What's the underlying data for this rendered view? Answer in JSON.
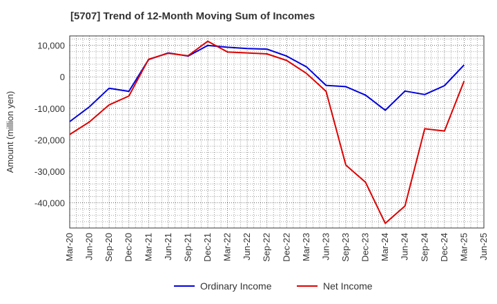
{
  "chart_data": {
    "type": "line",
    "title": "[5707]  Trend of 12-Month Moving Sum of Incomes",
    "ylabel": "Amount (million yen)",
    "xlabel": "",
    "ylim": [
      -48000,
      13000
    ],
    "yticks": [
      10000,
      0,
      -10000,
      -20000,
      -30000,
      -40000
    ],
    "ytick_labels": [
      "10,000",
      "0",
      "-10,000",
      "-20,000",
      "-30,000",
      "-40,000"
    ],
    "categories": [
      "Mar-20",
      "Jun-20",
      "Sep-20",
      "Dec-20",
      "Mar-21",
      "Jun-21",
      "Sep-21",
      "Dec-21",
      "Mar-22",
      "Jun-22",
      "Sep-22",
      "Dec-22",
      "Mar-23",
      "Jun-23",
      "Sep-23",
      "Dec-23",
      "Mar-24",
      "Jun-24",
      "Sep-24",
      "Dec-24",
      "Mar-25",
      "Jun-25"
    ],
    "grid": true,
    "legend_position": "bottom",
    "series": [
      {
        "name": "Ordinary Income",
        "color": "#0000dd",
        "values": [
          -14200,
          -9500,
          -3600,
          -4600,
          5500,
          7600,
          6600,
          10000,
          9400,
          9000,
          8800,
          6600,
          3200,
          -2700,
          -3100,
          -5800,
          -10600,
          -4500,
          -5600,
          -2800,
          3800,
          null
        ]
      },
      {
        "name": "Net Income",
        "color": "#dd0000",
        "values": [
          -18300,
          -14300,
          -8900,
          -6100,
          5600,
          7500,
          6700,
          11300,
          7900,
          7600,
          7300,
          5200,
          1100,
          -4600,
          -28000,
          -33500,
          -46500,
          -41000,
          -16500,
          -17200,
          -1300,
          null
        ]
      }
    ]
  }
}
